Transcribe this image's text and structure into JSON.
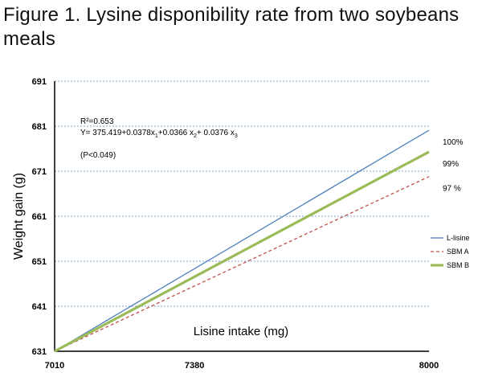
{
  "figure_title": "Figure 1. Lysine disponibility rate from two soybeans meals",
  "chart_data": {
    "type": "line",
    "xlabel": "Lisine intake (mg)",
    "ylabel": "Weight gain (g)",
    "x_tick_labels": [
      "7010",
      "7380",
      "8000"
    ],
    "y_tick_labels": [
      "631",
      "641",
      "651",
      "661",
      "671",
      "681",
      "691"
    ],
    "xlim": [
      7010,
      8000
    ],
    "ylim": [
      631,
      691
    ],
    "grid": "horizontal dotted",
    "legend_position": "right",
    "series": [
      {
        "name": "L-lisine",
        "x": [
          7010,
          8000
        ],
        "y": [
          631,
          680.1
        ],
        "color": "#4f81bd",
        "style": "solid",
        "end_label": "100%"
      },
      {
        "name": "SBM A",
        "x": [
          7010,
          8000
        ],
        "y": [
          631,
          669.8
        ],
        "color": "#c0504d",
        "style": "dashed",
        "end_label": "97 %"
      },
      {
        "name": "SBM B",
        "x": [
          7010,
          8000
        ],
        "y": [
          631,
          675.3
        ],
        "color": "#9bbb59",
        "style": "thick",
        "end_label": "99%"
      }
    ],
    "annotations": {
      "r2": "R²=0.653",
      "equation_main": "Y= 375.419+0.0378x",
      "equation_sub1": "1",
      "equation_mid": "+0.0366  x",
      "equation_sub2": "2",
      "equation_end": "+ 0.0376 x",
      "equation_sub3": "3",
      "pvalue": "(P<0.049)"
    }
  }
}
